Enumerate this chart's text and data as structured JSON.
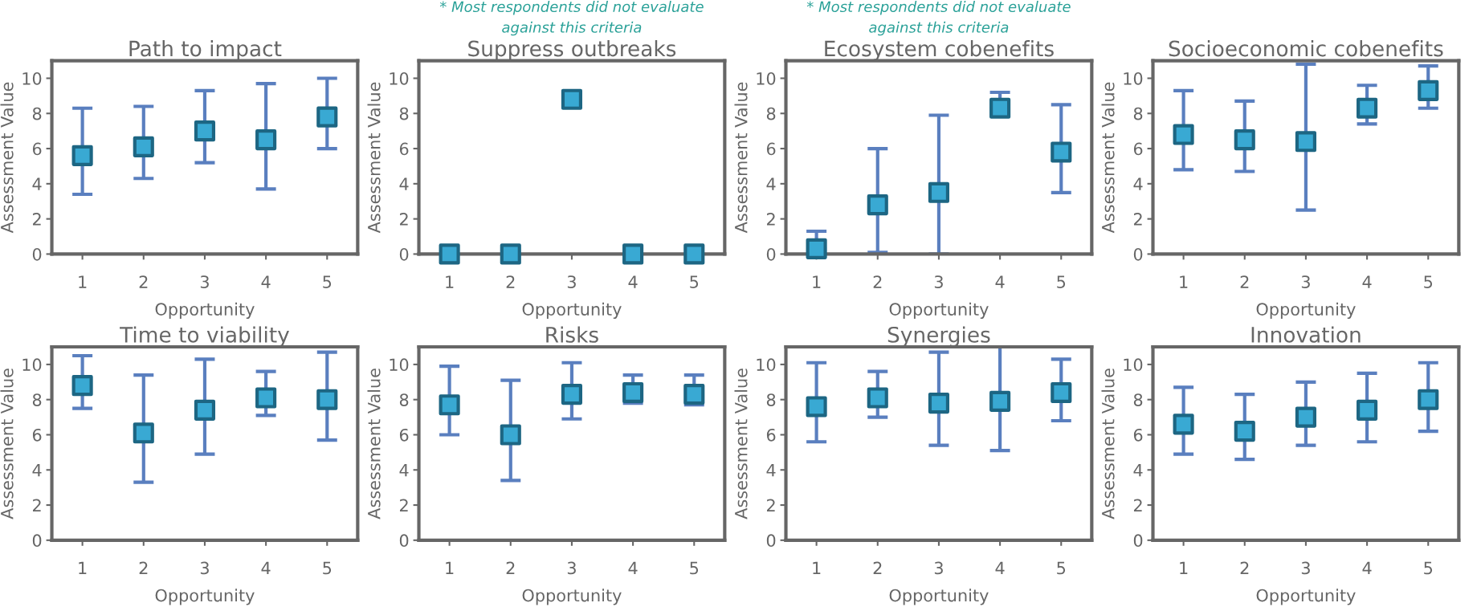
{
  "chart_data": [
    {
      "type": "scatter",
      "title": "Path to impact",
      "xlabel": "Opportunity",
      "ylabel": "Assessment Value",
      "x": [
        1,
        2,
        3,
        4,
        5
      ],
      "xlim": [
        0.5,
        5.5
      ],
      "xticks": [
        1,
        2,
        3,
        4,
        5
      ],
      "ylim": [
        0,
        11
      ],
      "yticks": [
        0,
        2,
        4,
        6,
        8,
        10
      ],
      "marker": "square",
      "grid": false,
      "series": [
        {
          "color": "#39a9d3",
          "values": [
            5.6,
            6.1,
            7.0,
            6.5,
            7.8
          ],
          "errors": [
            [
              3.4,
              8.3
            ],
            [
              4.3,
              8.4
            ],
            [
              5.2,
              9.3
            ],
            [
              3.7,
              9.7
            ],
            [
              6.0,
              10.0
            ]
          ]
        }
      ]
    },
    {
      "type": "scatter",
      "title": "Suppress outbreaks",
      "xlabel": "Opportunity",
      "ylabel": "Assessment Value",
      "x": [
        1,
        2,
        3,
        4,
        5
      ],
      "xlim": [
        0.5,
        5.5
      ],
      "xticks": [
        1,
        2,
        3,
        4,
        5
      ],
      "ylim": [
        0,
        11
      ],
      "yticks": [
        0,
        2,
        4,
        6,
        8,
        10
      ],
      "marker": "square",
      "grid": false,
      "annotations": [
        "* Most respondents did not evaluate\nagainst this criteria"
      ],
      "series": [
        {
          "color": "#39a9d3",
          "values": [
            0,
            0,
            8.8,
            0,
            0
          ]
        }
      ]
    },
    {
      "type": "scatter",
      "title": "Ecosystem cobenefits",
      "xlabel": "Opportunity",
      "ylabel": "Assessment Value",
      "x": [
        1,
        2,
        3,
        4,
        5
      ],
      "xlim": [
        0.5,
        5.5
      ],
      "xticks": [
        1,
        2,
        3,
        4,
        5
      ],
      "ylim": [
        0,
        11
      ],
      "yticks": [
        0,
        2,
        4,
        6,
        8,
        10
      ],
      "marker": "square",
      "grid": false,
      "annotations": [
        "* Most respondents did not evaluate\nagainst this criteria"
      ],
      "series": [
        {
          "color": "#39a9d3",
          "values": [
            0.3,
            2.8,
            3.5,
            8.3,
            5.8
          ],
          "errors": [
            [
              0.3,
              1.3
            ],
            [
              0.1,
              6.0
            ],
            [
              0,
              7.9
            ],
            [
              8.3,
              9.2
            ],
            [
              3.5,
              8.5
            ]
          ]
        }
      ]
    },
    {
      "type": "scatter",
      "title": "Socioeconomic cobenefits",
      "xlabel": "Opportunity",
      "ylabel": "Assessment Value",
      "x": [
        1,
        2,
        3,
        4,
        5
      ],
      "xlim": [
        0.5,
        5.5
      ],
      "xticks": [
        1,
        2,
        3,
        4,
        5
      ],
      "ylim": [
        0,
        11
      ],
      "yticks": [
        0,
        2,
        4,
        6,
        8,
        10
      ],
      "marker": "square",
      "grid": false,
      "series": [
        {
          "color": "#39a9d3",
          "values": [
            6.8,
            6.5,
            6.4,
            8.3,
            9.3
          ],
          "errors": [
            [
              4.8,
              9.3
            ],
            [
              4.7,
              8.7
            ],
            [
              2.5,
              10.8
            ],
            [
              7.4,
              9.6
            ],
            [
              8.3,
              10.7
            ]
          ]
        }
      ]
    },
    {
      "type": "scatter",
      "title": "Time to viability",
      "xlabel": "Opportunity",
      "ylabel": "Assessment Value",
      "x": [
        1,
        2,
        3,
        4,
        5
      ],
      "xlim": [
        0.5,
        5.5
      ],
      "xticks": [
        1,
        2,
        3,
        4,
        5
      ],
      "ylim": [
        0,
        11
      ],
      "yticks": [
        0,
        2,
        4,
        6,
        8,
        10
      ],
      "marker": "square",
      "grid": false,
      "series": [
        {
          "color": "#39a9d3",
          "values": [
            8.8,
            6.1,
            7.4,
            8.1,
            8.0
          ],
          "errors": [
            [
              7.5,
              10.5
            ],
            [
              3.3,
              9.4
            ],
            [
              4.9,
              10.3
            ],
            [
              7.1,
              9.6
            ],
            [
              5.7,
              10.7
            ]
          ]
        }
      ]
    },
    {
      "type": "scatter",
      "title": "Risks",
      "xlabel": "Opportunity",
      "ylabel": "Assessment Value",
      "x": [
        1,
        2,
        3,
        4,
        5
      ],
      "xlim": [
        0.5,
        5.5
      ],
      "xticks": [
        1,
        2,
        3,
        4,
        5
      ],
      "ylim": [
        0,
        11
      ],
      "yticks": [
        0,
        2,
        4,
        6,
        8,
        10
      ],
      "marker": "square",
      "grid": false,
      "series": [
        {
          "color": "#39a9d3",
          "values": [
            7.7,
            6.0,
            8.3,
            8.4,
            8.3
          ],
          "errors": [
            [
              6.0,
              9.9
            ],
            [
              3.4,
              9.1
            ],
            [
              6.9,
              10.1
            ],
            [
              7.8,
              9.4
            ],
            [
              7.7,
              9.4
            ]
          ]
        }
      ]
    },
    {
      "type": "scatter",
      "title": "Synergies",
      "xlabel": "Opportunity",
      "ylabel": "Assessment Value",
      "x": [
        1,
        2,
        3,
        4,
        5
      ],
      "xlim": [
        0.5,
        5.5
      ],
      "xticks": [
        1,
        2,
        3,
        4,
        5
      ],
      "ylim": [
        0,
        11
      ],
      "yticks": [
        0,
        2,
        4,
        6,
        8,
        10
      ],
      "marker": "square",
      "grid": false,
      "series": [
        {
          "color": "#39a9d3",
          "values": [
            7.6,
            8.1,
            7.8,
            7.9,
            8.4
          ],
          "errors": [
            [
              5.6,
              10.1
            ],
            [
              7.0,
              9.6
            ],
            [
              5.4,
              10.7
            ],
            [
              5.1,
              11.0
            ],
            [
              6.8,
              10.3
            ]
          ]
        }
      ]
    },
    {
      "type": "scatter",
      "title": "Innovation",
      "xlabel": "Opportunity",
      "ylabel": "Assessment Value",
      "x": [
        1,
        2,
        3,
        4,
        5
      ],
      "xlim": [
        0.5,
        5.5
      ],
      "xticks": [
        1,
        2,
        3,
        4,
        5
      ],
      "ylim": [
        0,
        11
      ],
      "yticks": [
        0,
        2,
        4,
        6,
        8,
        10
      ],
      "marker": "square",
      "grid": false,
      "series": [
        {
          "color": "#39a9d3",
          "values": [
            6.6,
            6.2,
            7.0,
            7.4,
            8.0
          ],
          "errors": [
            [
              4.9,
              8.7
            ],
            [
              4.6,
              8.3
            ],
            [
              5.4,
              9.0
            ],
            [
              5.6,
              9.5
            ],
            [
              6.2,
              10.1
            ]
          ]
        }
      ]
    }
  ]
}
